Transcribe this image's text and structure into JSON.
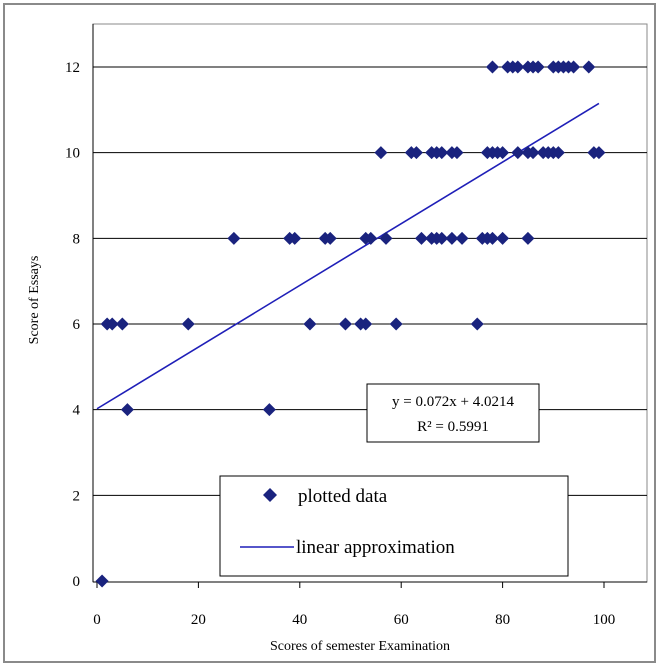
{
  "chart_data": {
    "type": "scatter",
    "xlabel": "Scores of semester Examination",
    "ylabel": "Score of Essays",
    "xlim": [
      0,
      110
    ],
    "ylim": [
      0,
      13
    ],
    "xticks": [
      "0",
      "20",
      "40",
      "60",
      "80",
      "100"
    ],
    "yticks": [
      "0",
      "2",
      "4",
      "6",
      "8",
      "10",
      "12"
    ],
    "grid": "horizontal lines at y ticks",
    "legend_position": "bottom-center",
    "colors": {
      "points": "#1a237e",
      "line": "#1f1fb8",
      "grid": "#000000",
      "frame": "#888888"
    },
    "series": [
      {
        "name": "plotted data",
        "kind": "scatter",
        "points": [
          [
            1,
            0
          ],
          [
            6,
            4
          ],
          [
            34,
            4
          ],
          [
            2,
            6
          ],
          [
            3,
            6
          ],
          [
            5,
            6
          ],
          [
            18,
            6
          ],
          [
            42,
            6
          ],
          [
            49,
            6
          ],
          [
            52,
            6
          ],
          [
            53,
            6
          ],
          [
            59,
            6
          ],
          [
            75,
            6
          ],
          [
            27,
            8
          ],
          [
            38,
            8
          ],
          [
            39,
            8
          ],
          [
            45,
            8
          ],
          [
            46,
            8
          ],
          [
            53,
            8
          ],
          [
            54,
            8
          ],
          [
            57,
            8
          ],
          [
            64,
            8
          ],
          [
            66,
            8
          ],
          [
            67,
            8
          ],
          [
            68,
            8
          ],
          [
            70,
            8
          ],
          [
            72,
            8
          ],
          [
            76,
            8
          ],
          [
            77,
            8
          ],
          [
            78,
            8
          ],
          [
            80,
            8
          ],
          [
            85,
            8
          ],
          [
            56,
            10
          ],
          [
            62,
            10
          ],
          [
            63,
            10
          ],
          [
            66,
            10
          ],
          [
            67,
            10
          ],
          [
            68,
            10
          ],
          [
            70,
            10
          ],
          [
            71,
            10
          ],
          [
            77,
            10
          ],
          [
            78,
            10
          ],
          [
            79,
            10
          ],
          [
            80,
            10
          ],
          [
            83,
            10
          ],
          [
            85,
            10
          ],
          [
            86,
            10
          ],
          [
            88,
            10
          ],
          [
            89,
            10
          ],
          [
            90,
            10
          ],
          [
            91,
            10
          ],
          [
            98,
            10
          ],
          [
            99,
            10
          ],
          [
            78,
            12
          ],
          [
            81,
            12
          ],
          [
            82,
            12
          ],
          [
            83,
            12
          ],
          [
            85,
            12
          ],
          [
            86,
            12
          ],
          [
            87,
            12
          ],
          [
            90,
            12
          ],
          [
            91,
            12
          ],
          [
            92,
            12
          ],
          [
            93,
            12
          ],
          [
            94,
            12
          ],
          [
            97,
            12
          ]
        ]
      },
      {
        "name": "linear approximation",
        "kind": "line",
        "points": [
          [
            0,
            4.0214
          ],
          [
            99,
            11.1494
          ]
        ]
      }
    ],
    "annotation": {
      "equation": "y = 0.072x + 4.0214",
      "r2": "R² = 0.5991"
    }
  }
}
